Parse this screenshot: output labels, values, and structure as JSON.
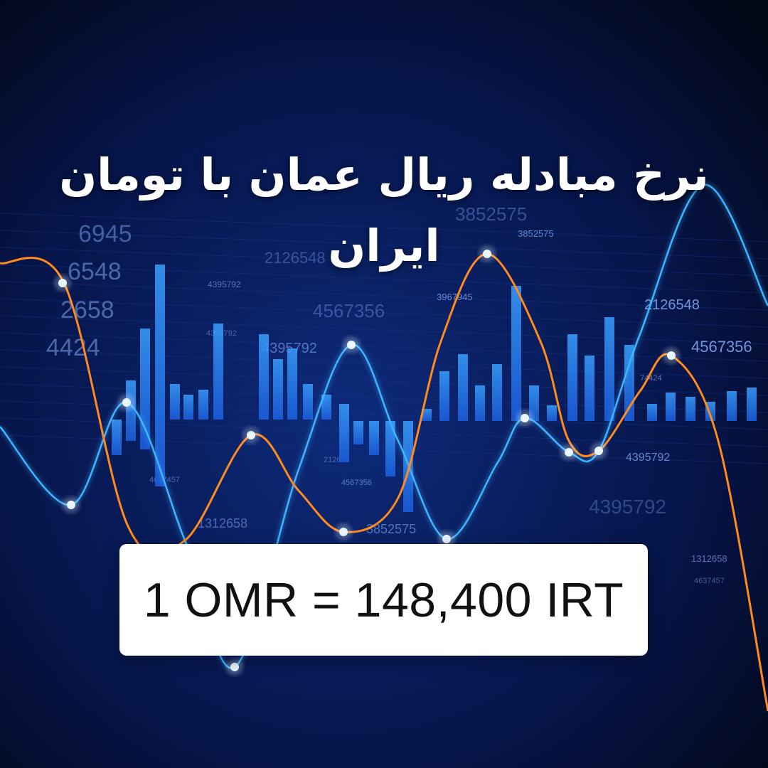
{
  "headline": "نرخ مبادله ریال عمان با تومان ایران",
  "rate": {
    "text": "1 OMR = 148,400 IRT"
  },
  "background": {
    "figures": [
      "3852575",
      "3852575",
      "2126548",
      "4395792",
      "3967945",
      "4567356",
      "2126548",
      "4395792",
      "4567356",
      "1312658",
      "4395792",
      "4567356",
      "3852575",
      "4395792",
      "4637457",
      "1312658",
      "4395792",
      "4637457",
      "6945",
      "6548",
      "2658",
      "4424",
      "2126",
      "74424"
    ],
    "colors": {
      "background": "#030a24",
      "bars": "#2f8dff",
      "cyan_line": "#3fb4ff",
      "orange_line": "#ff8a1e",
      "nodes": "#eaf6ff"
    }
  }
}
